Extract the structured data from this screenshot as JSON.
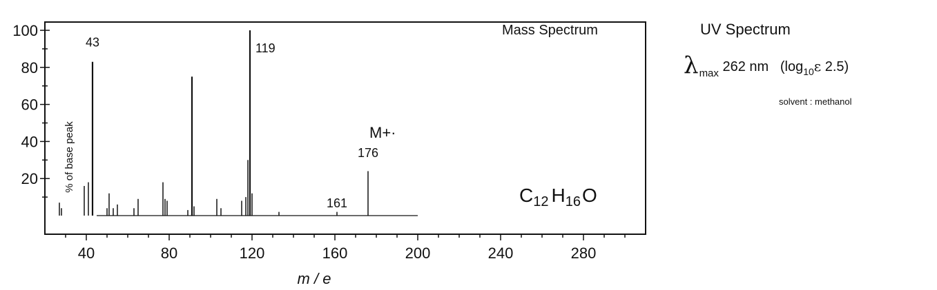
{
  "chart_data": {
    "type": "bar",
    "title": "Mass Spectrum",
    "xlabel": "m / e",
    "ylabel": "% of base peak",
    "xlim": [
      20,
      310
    ],
    "ylim": [
      0,
      100
    ],
    "x_ticks": [
      40,
      80,
      120,
      160,
      200,
      240,
      280
    ],
    "y_ticks": [
      20,
      40,
      60,
      80,
      100
    ],
    "grid": false,
    "formula": {
      "base": [
        "C",
        "H",
        "O"
      ],
      "subs": [
        "12",
        "16",
        ""
      ]
    },
    "molecular_ion_label": "M+·",
    "peaks": [
      {
        "mz": 27,
        "intensity": 7
      },
      {
        "mz": 28,
        "intensity": 4
      },
      {
        "mz": 39,
        "intensity": 16
      },
      {
        "mz": 41,
        "intensity": 18
      },
      {
        "mz": 43,
        "intensity": 83,
        "label": "43"
      },
      {
        "mz": 50,
        "intensity": 4
      },
      {
        "mz": 51,
        "intensity": 12
      },
      {
        "mz": 53,
        "intensity": 4
      },
      {
        "mz": 55,
        "intensity": 6
      },
      {
        "mz": 63,
        "intensity": 4
      },
      {
        "mz": 65,
        "intensity": 9
      },
      {
        "mz": 77,
        "intensity": 18
      },
      {
        "mz": 78,
        "intensity": 9
      },
      {
        "mz": 79,
        "intensity": 8
      },
      {
        "mz": 89,
        "intensity": 3
      },
      {
        "mz": 91,
        "intensity": 75
      },
      {
        "mz": 92,
        "intensity": 5
      },
      {
        "mz": 103,
        "intensity": 9
      },
      {
        "mz": 105,
        "intensity": 4
      },
      {
        "mz": 115,
        "intensity": 8
      },
      {
        "mz": 117,
        "intensity": 10
      },
      {
        "mz": 118,
        "intensity": 30
      },
      {
        "mz": 119,
        "intensity": 100,
        "label": "119"
      },
      {
        "mz": 120,
        "intensity": 12
      },
      {
        "mz": 133,
        "intensity": 2
      },
      {
        "mz": 161,
        "intensity": 2,
        "label": "161"
      },
      {
        "mz": 176,
        "intensity": 24,
        "label": "176"
      }
    ]
  },
  "uv": {
    "title": "UV Spectrum",
    "lambda_symbol": "λ",
    "max_sub": "max",
    "value": "262 nm",
    "log_open": "(log",
    "log_sub": "10",
    "epsilon": "ε",
    "log_value": "2.5)",
    "solvent": "solvent : methanol"
  }
}
